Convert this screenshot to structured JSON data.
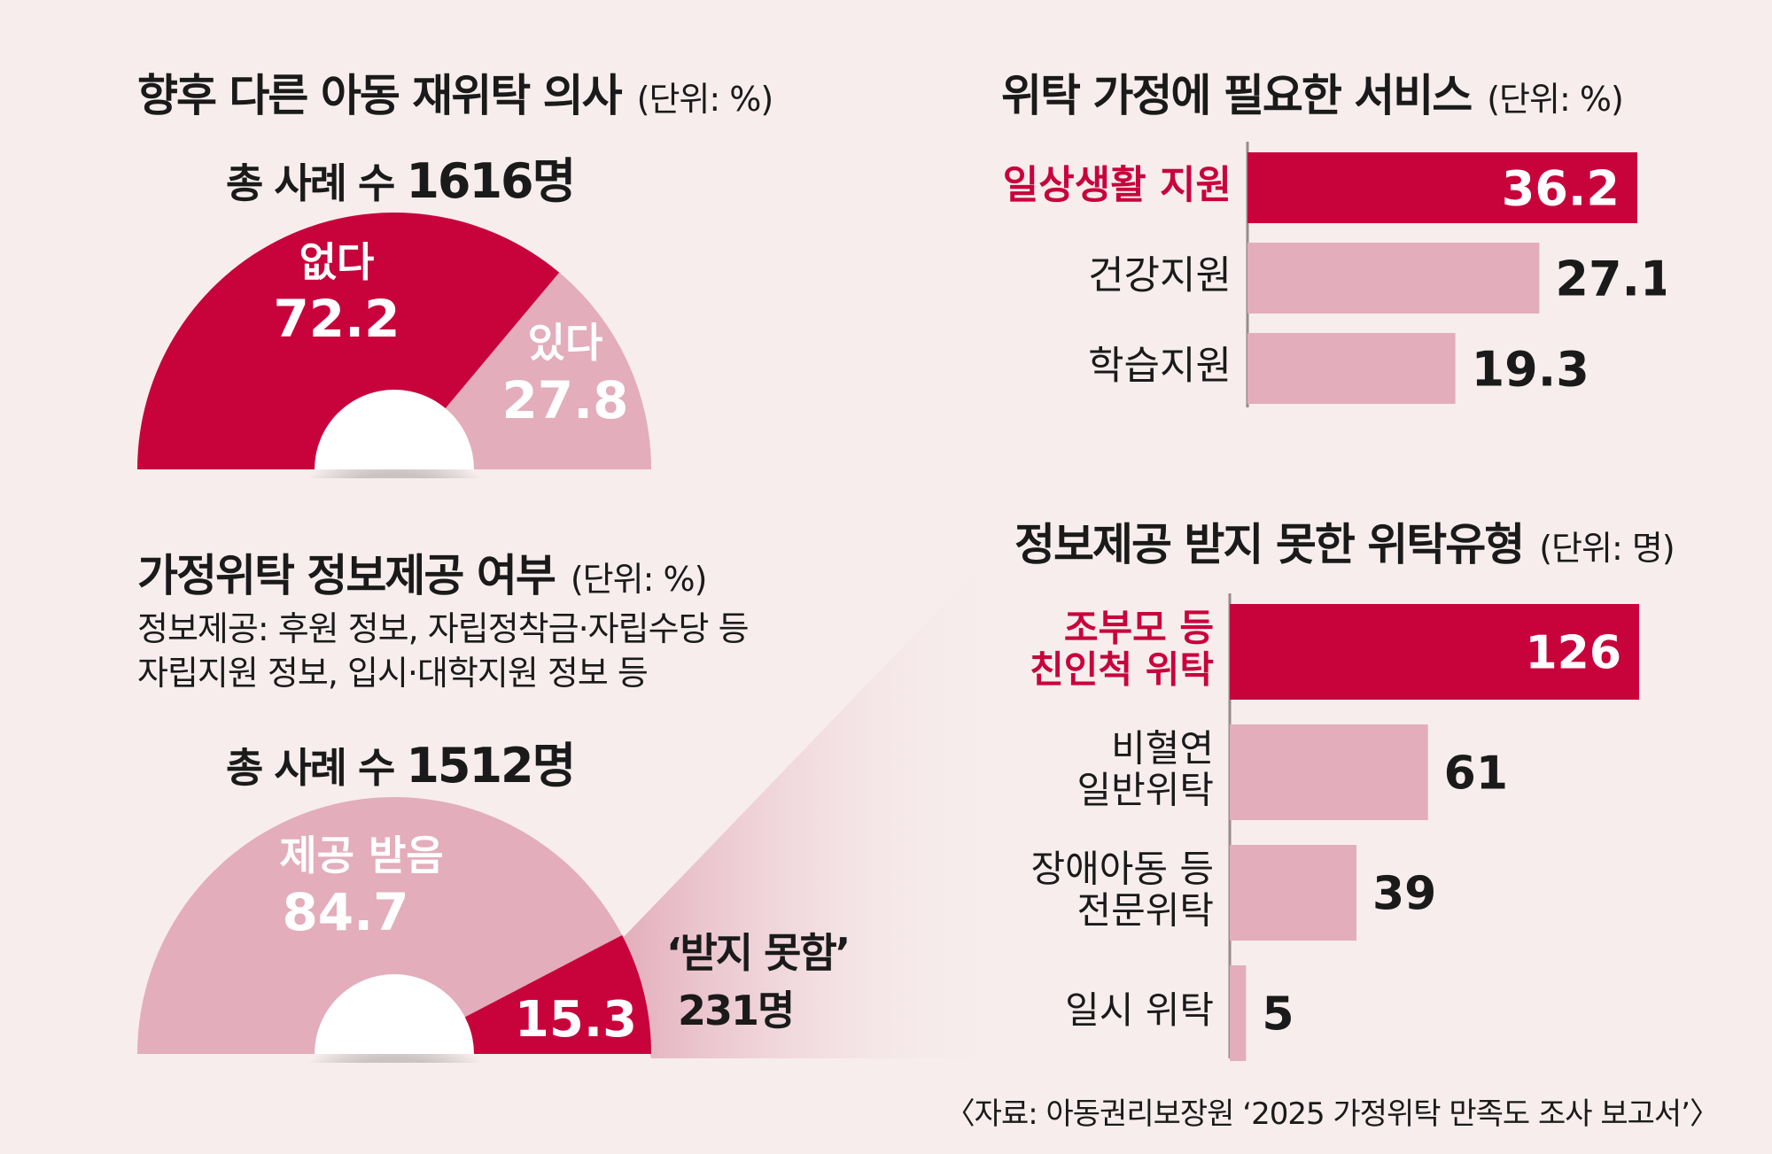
{
  "colors": {
    "primary": "#c8033c",
    "light": "#e3adbb",
    "background": "#f7eded",
    "text": "#1a1a1a"
  },
  "chart_data": [
    {
      "type": "pie",
      "subtype": "half-donut",
      "title": "향후 다른 아동 재위탁 의사",
      "unit": "(단위: %)",
      "total_label": "총 사례 수",
      "total_value": "1616명",
      "slices": [
        {
          "label": "없다",
          "value": 72.2,
          "display": "72.2",
          "color": "#c8033c"
        },
        {
          "label": "있다",
          "value": 27.8,
          "display": "27.8",
          "color": "#e3adbb"
        }
      ]
    },
    {
      "type": "bar",
      "orientation": "horizontal",
      "title": "위탁 가정에 필요한 서비스",
      "unit": "(단위: %)",
      "categories": [
        "일상생활 지원",
        "건강지원",
        "학습지원"
      ],
      "values": [
        36.2,
        27.1,
        19.3
      ],
      "displays": [
        "36.2",
        "27.1",
        "19.3"
      ],
      "highlight_index": 0,
      "xlim": [
        0,
        36.2
      ]
    },
    {
      "type": "pie",
      "subtype": "half-donut",
      "title": "가정위탁 정보제공 여부",
      "unit": "(단위: %)",
      "note_lines": [
        "정보제공: 후원 정보, 자립정착금·자립수당 등",
        "자립지원 정보, 입시·대학지원 정보 등"
      ],
      "total_label": "총 사례 수",
      "total_value": "1512명",
      "slices": [
        {
          "label": "제공 받음",
          "value": 84.7,
          "display": "84.7",
          "color": "#e3adbb"
        },
        {
          "label": "",
          "value": 15.3,
          "display": "15.3",
          "color": "#c8033c"
        }
      ],
      "callout_label": "‘받지 못함’",
      "callout_value": "231명"
    },
    {
      "type": "bar",
      "orientation": "horizontal",
      "title": "정보제공 받지 못한 위탁유형",
      "unit": "(단위: 명)",
      "categories": [
        [
          "조부모 등",
          "친인척 위탁"
        ],
        [
          "비혈연",
          "일반위탁"
        ],
        [
          "장애아동 등",
          "전문위탁"
        ],
        [
          "일시 위탁"
        ]
      ],
      "values": [
        126,
        61,
        39,
        5
      ],
      "displays": [
        "126",
        "61",
        "39",
        "5"
      ],
      "highlight_index": 0,
      "xlim": [
        0,
        126
      ]
    }
  ],
  "source": "〈자료: 아동권리보장원 ‘2025 가정위탁 만족도 조사 보고서’〉"
}
